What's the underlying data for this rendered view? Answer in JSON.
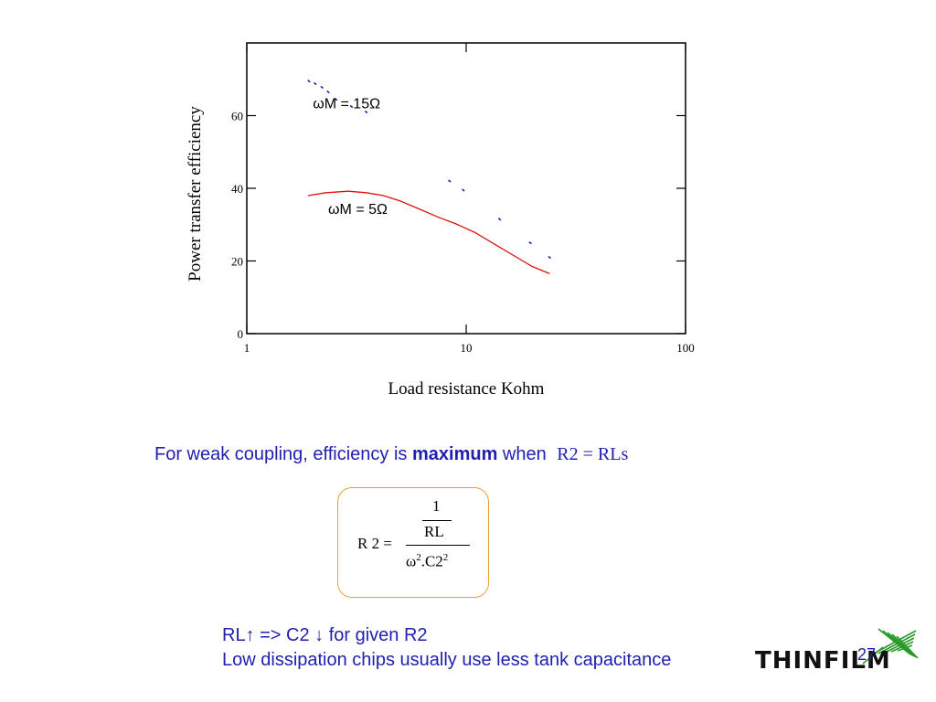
{
  "chart_data": {
    "type": "line",
    "xlabel": "Load resistance Kohm",
    "ylabel": "Power transfer efficiency",
    "xscale": "log",
    "xlim": [
      1,
      100
    ],
    "ylim": [
      0,
      80
    ],
    "xticks": [
      "1",
      "10",
      "100"
    ],
    "yticks": [
      "0",
      "20",
      "40",
      "60"
    ],
    "grid": false,
    "series": [
      {
        "name": "ωM = 15Ω",
        "style": "dotted",
        "color": "#1f1fb0",
        "x": [
          1.92,
          2.05,
          2.2,
          2.35,
          2.55,
          3.0,
          3.5,
          8.4,
          9.7,
          14.2,
          19.6,
          24.0
        ],
        "y": [
          69.5,
          68.8,
          67.8,
          66.5,
          64.5,
          62.5,
          61.0,
          42.0,
          39.5,
          31.5,
          25.0,
          21.0
        ]
      },
      {
        "name": "ωM = 5Ω",
        "style": "solid",
        "color": "#dd1111",
        "x": [
          1.9,
          2.3,
          2.9,
          3.5,
          4.2,
          5.0,
          6.0,
          7.5,
          9.0,
          11.0,
          14.0,
          17.0,
          20.0,
          24.0
        ],
        "y": [
          38.0,
          38.8,
          39.2,
          38.8,
          38.0,
          36.5,
          34.5,
          32.0,
          30.2,
          27.8,
          24.0,
          21.0,
          18.5,
          16.5
        ]
      }
    ],
    "annotations": [
      {
        "text": "ωM = 15Ω",
        "x": 2.0,
        "y": 62.0
      },
      {
        "text": "ωM = 5Ω",
        "x": 2.35,
        "y": 33.0
      }
    ]
  },
  "caption": {
    "prefix": "For weak coupling, efficiency is ",
    "bold": "maximum",
    "middle": " when ",
    "math": "R2  = RLs"
  },
  "formula": {
    "lhs": "R 2 =",
    "outer_num": "1",
    "inner_den": "RL",
    "den": "ω",
    "den_exp1": "2",
    "den_mid": ".C2",
    "den_exp2": "2"
  },
  "notes": {
    "line1": "RL↑ => C2 ↓ for given R2",
    "line2": "Low dissipation chips usually use less tank capacitance"
  },
  "page_number": "27",
  "logo": {
    "text": "THINFILM",
    "color": "#2a9a2a"
  }
}
